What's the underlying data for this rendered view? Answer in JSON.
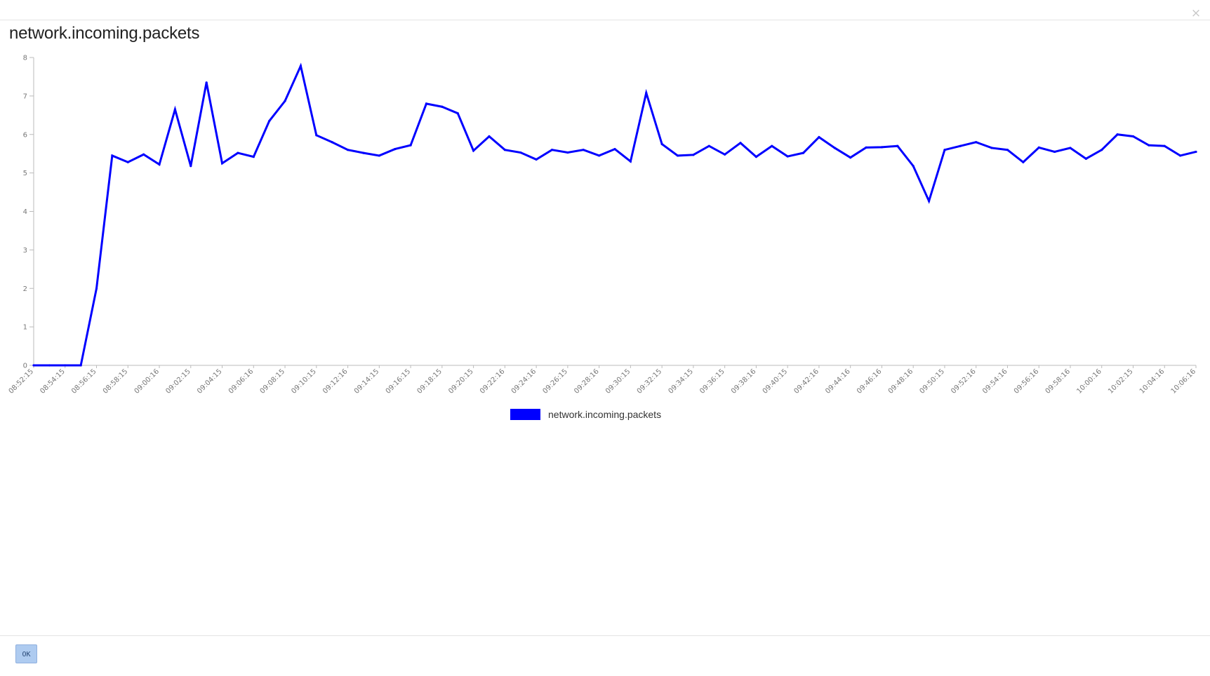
{
  "dialog": {
    "close_label": "×",
    "ok_label": "OK"
  },
  "chart_data": {
    "type": "line",
    "title": "network.incoming.packets",
    "xlabel": "",
    "ylabel": "",
    "ylim": [
      0,
      8
    ],
    "yticks": [
      0,
      1,
      2,
      3,
      4,
      5,
      6,
      7,
      8
    ],
    "grid": false,
    "legend_position": "bottom-center",
    "color": "#0000ff",
    "x_tick_labels": [
      "08:52:15",
      "08:54:15",
      "08:56:15",
      "08:58:15",
      "09:00:16",
      "09:02:15",
      "09:04:15",
      "09:06:16",
      "09:08:15",
      "09:10:15",
      "09:12:16",
      "09:14:15",
      "09:16:15",
      "09:18:15",
      "09:20:15",
      "09:22:16",
      "09:24:16",
      "09:26:15",
      "09:28:16",
      "09:30:15",
      "09:32:15",
      "09:34:15",
      "09:36:15",
      "09:38:16",
      "09:40:15",
      "09:42:16",
      "09:44:16",
      "09:46:16",
      "09:48:16",
      "09:50:15",
      "09:52:16",
      "09:54:16",
      "09:56:16",
      "09:58:16",
      "10:00:16",
      "10:02:15",
      "10:04:16",
      "10:06:16"
    ],
    "series": [
      {
        "name": "network.incoming.packets",
        "values": [
          0,
          0,
          0,
          0,
          2.0,
          5.45,
          5.28,
          5.48,
          5.22,
          6.65,
          5.18,
          7.35,
          5.25,
          5.52,
          5.42,
          6.35,
          6.87,
          7.78,
          5.98,
          5.8,
          5.6,
          5.52,
          5.45,
          5.62,
          5.72,
          6.8,
          6.72,
          6.55,
          5.58,
          5.95,
          5.6,
          5.53,
          5.35,
          5.6,
          5.53,
          5.6,
          5.45,
          5.62,
          5.3,
          7.08,
          5.75,
          5.45,
          5.47,
          5.7,
          5.48,
          5.78,
          5.42,
          5.7,
          5.43,
          5.52,
          5.93,
          5.65,
          5.4,
          5.66,
          5.67,
          5.7,
          5.18,
          4.27,
          5.6,
          5.7,
          5.8,
          5.65,
          5.6,
          5.28,
          5.66,
          5.55,
          5.65,
          5.37,
          5.6,
          6.0,
          5.95,
          5.72,
          5.7,
          5.45,
          5.55
        ]
      }
    ]
  }
}
